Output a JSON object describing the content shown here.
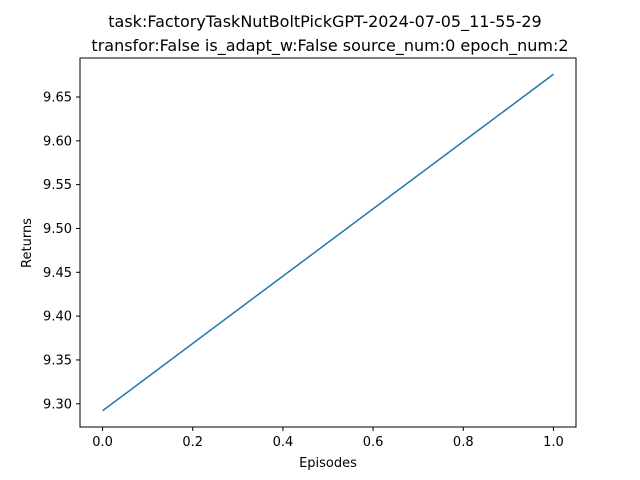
{
  "chart_data": {
    "type": "line",
    "title": "task:FactoryTaskNutBoltPickGPT-2024-07-05_11-55-29",
    "subtitle": "transfor:False  is_adapt_w:False  source_num:0   epoch_num:2",
    "xlabel": "Episodes",
    "ylabel": "Returns",
    "xlim": [
      -0.05,
      1.05
    ],
    "ylim": [
      9.2735,
      9.6945
    ],
    "xticks": [
      "0.0",
      "0.2",
      "0.4",
      "0.6",
      "0.8",
      "1.0"
    ],
    "yticks": [
      "9.30",
      "9.35",
      "9.40",
      "9.45",
      "9.50",
      "9.55",
      "9.60",
      "9.65"
    ],
    "grid": false,
    "series": [
      {
        "x": [
          0.0,
          1.0
        ],
        "values": [
          9.292,
          9.676
        ],
        "color": "#1f77b4"
      }
    ]
  }
}
